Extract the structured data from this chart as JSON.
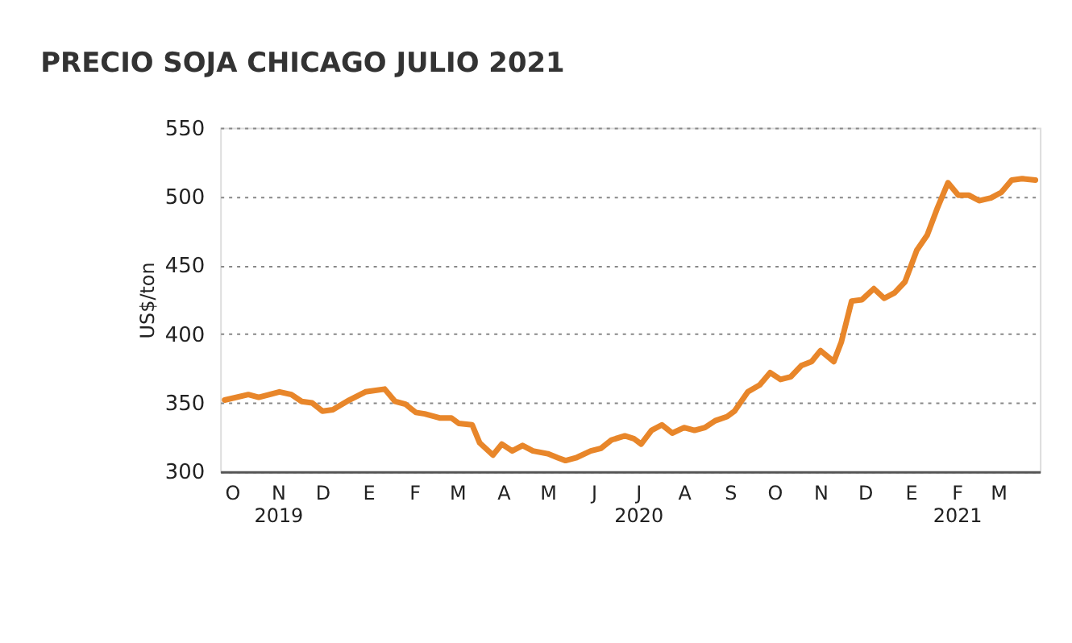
{
  "chart_data": {
    "type": "line",
    "title": "PRECIO SOJA CHICAGO JULIO 2021",
    "ylabel": "US$/ton",
    "x": [
      "2019-10-10",
      "2019-10-26",
      "2019-11-02",
      "2019-11-16",
      "2019-11-24",
      "2019-12-01",
      "2019-12-08",
      "2019-12-15",
      "2019-12-22",
      "2020-01-02",
      "2020-01-13",
      "2020-01-26",
      "2020-02-02",
      "2020-02-09",
      "2020-02-16",
      "2020-02-22",
      "2020-03-03",
      "2020-03-11",
      "2020-03-16",
      "2020-03-25",
      "2020-03-30",
      "2020-04-08",
      "2020-04-14",
      "2020-04-21",
      "2020-04-28",
      "2020-05-05",
      "2020-05-15",
      "2020-05-22",
      "2020-05-27",
      "2020-06-03",
      "2020-06-13",
      "2020-06-20",
      "2020-06-27",
      "2020-07-06",
      "2020-07-12",
      "2020-07-17",
      "2020-07-24",
      "2020-07-31",
      "2020-08-07",
      "2020-08-15",
      "2020-08-22",
      "2020-08-29",
      "2020-09-05",
      "2020-09-13",
      "2020-09-18",
      "2020-09-27",
      "2020-10-05",
      "2020-10-12",
      "2020-10-19",
      "2020-10-26",
      "2020-11-02",
      "2020-11-09",
      "2020-11-15",
      "2020-11-24",
      "2020-11-29",
      "2020-12-06",
      "2020-12-13",
      "2020-12-21",
      "2020-12-28",
      "2021-01-04",
      "2021-01-11",
      "2021-01-19",
      "2021-01-26",
      "2021-02-02",
      "2021-02-09",
      "2021-02-16",
      "2021-02-23",
      "2021-03-02",
      "2021-03-10",
      "2021-03-17",
      "2021-03-24",
      "2021-03-31",
      "2021-04-09"
    ],
    "series": [
      {
        "color": "#e8862a",
        "values": [
          352,
          356,
          354,
          358,
          356,
          351,
          350,
          344,
          345,
          352,
          358,
          360,
          351,
          349,
          343,
          342,
          339,
          339,
          335,
          334,
          321,
          312,
          320,
          315,
          319,
          315,
          313,
          310,
          308,
          310,
          315,
          317,
          323,
          326,
          324,
          320,
          330,
          334,
          328,
          332,
          330,
          332,
          337,
          340,
          344,
          358,
          363,
          372,
          367,
          369,
          377,
          380,
          388,
          380,
          394,
          424,
          425,
          433,
          426,
          430,
          438,
          461,
          472,
          492,
          510,
          501,
          501,
          497,
          499,
          503,
          512,
          513,
          512
        ]
      }
    ],
    "xlim": [
      "2019-10-07",
      "2021-04-12"
    ],
    "xticks": [
      {
        "value": "2019-10-15",
        "label": "O"
      },
      {
        "value": "2019-11-15",
        "label": "N\n2019"
      },
      {
        "value": "2019-12-15",
        "label": "D"
      },
      {
        "value": "2020-01-15",
        "label": "E"
      },
      {
        "value": "2020-02-15",
        "label": "F"
      },
      {
        "value": "2020-03-15",
        "label": "M"
      },
      {
        "value": "2020-04-15",
        "label": "A"
      },
      {
        "value": "2020-05-15",
        "label": "M"
      },
      {
        "value": "2020-06-15",
        "label": "J"
      },
      {
        "value": "2020-07-15",
        "label": "J\n2020"
      },
      {
        "value": "2020-08-15",
        "label": "A"
      },
      {
        "value": "2020-09-15",
        "label": "S"
      },
      {
        "value": "2020-10-15",
        "label": "O"
      },
      {
        "value": "2020-11-15",
        "label": "N"
      },
      {
        "value": "2020-12-15",
        "label": "D"
      },
      {
        "value": "2021-01-15",
        "label": "E"
      },
      {
        "value": "2021-02-15",
        "label": "F\n2021"
      },
      {
        "value": "2021-03-15",
        "label": "M"
      }
    ],
    "ylim": [
      300,
      550
    ],
    "yticks": [
      300,
      350,
      400,
      450,
      500,
      550
    ],
    "grid": "y",
    "legend": false,
    "marker": "none",
    "line_style": "solid"
  }
}
